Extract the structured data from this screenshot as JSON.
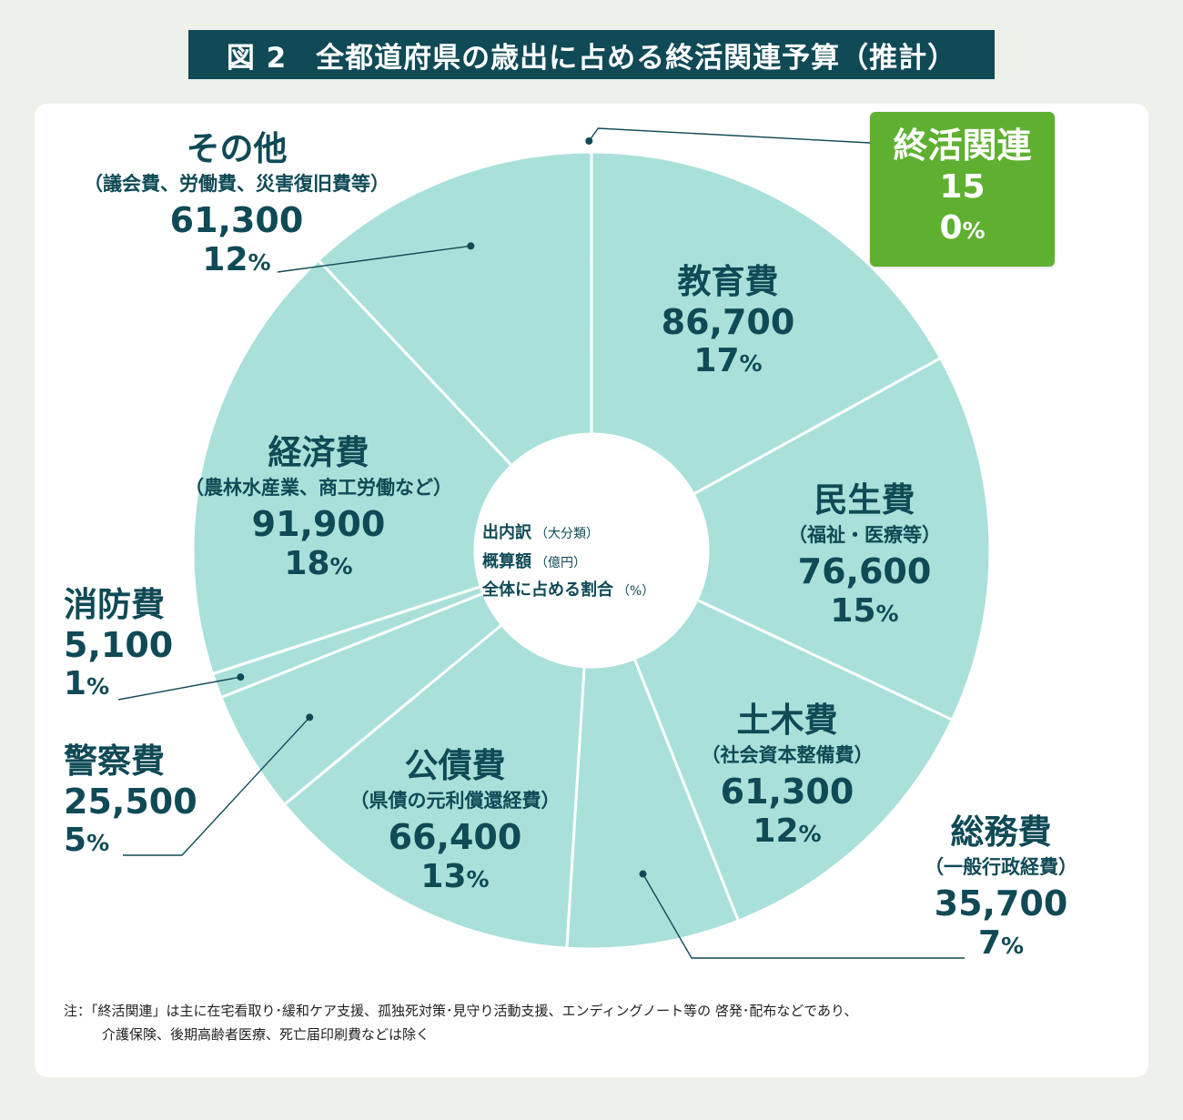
{
  "title": "図 2　全都道府県の歳出に占める終活関連予算（推計）",
  "center_label": {
    "line1": "出内訳",
    "line1_sub": "（大分類）",
    "line2": "概算額",
    "line2_sub": "（億円）",
    "line3": "全体に占める割合",
    "line3_sub": "（%）"
  },
  "colors": {
    "slice": "#a9e0da",
    "shukatsu": "#5fb031",
    "text": "#0f4a56",
    "title_bg": "#0f4a56"
  },
  "chart_data": {
    "type": "pie",
    "donut": true,
    "unit": "億円",
    "slices": [
      {
        "name": "終活関連",
        "sub": "",
        "value": 15,
        "pct": "0",
        "color": "#5fb031"
      },
      {
        "name": "教育費",
        "sub": "",
        "value": 86700,
        "pct": "17",
        "color": "#a9e0da"
      },
      {
        "name": "民生費",
        "sub": "（福祉・医療等）",
        "value": 76600,
        "pct": "15",
        "color": "#a9e0da"
      },
      {
        "name": "土木費",
        "sub": "（社会資本整備費）",
        "value": 61300,
        "pct": "12",
        "color": "#a9e0da"
      },
      {
        "name": "総務費",
        "sub": "（一般行政経費）",
        "value": 35700,
        "pct": "7",
        "color": "#a9e0da"
      },
      {
        "name": "公債費",
        "sub": "（県債の元利償還経費）",
        "value": 66400,
        "pct": "13",
        "color": "#a9e0da"
      },
      {
        "name": "警察費",
        "sub": "",
        "value": 25500,
        "pct": "5",
        "color": "#a9e0da"
      },
      {
        "name": "消防費",
        "sub": "",
        "value": 5100,
        "pct": "1",
        "color": "#a9e0da"
      },
      {
        "name": "経済費",
        "sub": "（農林水産業、商工労働など）",
        "value": 91900,
        "pct": "18",
        "color": "#a9e0da"
      },
      {
        "name": "その他",
        "sub": "（議会費、労働費、災害復旧費等）",
        "value": 61300,
        "pct": "12",
        "color": "#a9e0da"
      }
    ]
  },
  "labels": {
    "kyoiku": {
      "name": "教育費",
      "value": "86,700",
      "pct": "17"
    },
    "minsei": {
      "name": "民生費",
      "sub": "（福祉・医療等）",
      "value": "76,600",
      "pct": "15"
    },
    "doboku": {
      "name": "土木費",
      "sub": "（社会資本整備費）",
      "value": "61,300",
      "pct": "12"
    },
    "somu": {
      "name": "総務費",
      "sub": "（一般行政経費）",
      "value": "35,700",
      "pct": "7"
    },
    "kosai": {
      "name": "公債費",
      "sub": "（県債の元利償還経費）",
      "value": "66,400",
      "pct": "13"
    },
    "keisatsu": {
      "name": "警察費",
      "value": "25,500",
      "pct": "5"
    },
    "shobo": {
      "name": "消防費",
      "value": "5,100",
      "pct": "1"
    },
    "keizai": {
      "name": "経済費",
      "sub": "（農林水産業、商工労働など）",
      "value": "91,900",
      "pct": "18"
    },
    "sonota": {
      "name": "その他",
      "sub": "（議会費、労働費、災害復旧費等）",
      "value": "61,300",
      "pct": "12"
    },
    "shukatsu": {
      "name": "終活関連",
      "value": "15",
      "pct": "0"
    },
    "pct_sign": "%"
  },
  "note": {
    "line1": "注：「終活関連」は主に在宅看取り･緩和ケア支援、孤独死対策･見守り活動支援、エンディングノート等の 啓発･配布などであり、",
    "line2": "介護保険、後期高齢者医療、死亡届印刷費などは除く"
  }
}
